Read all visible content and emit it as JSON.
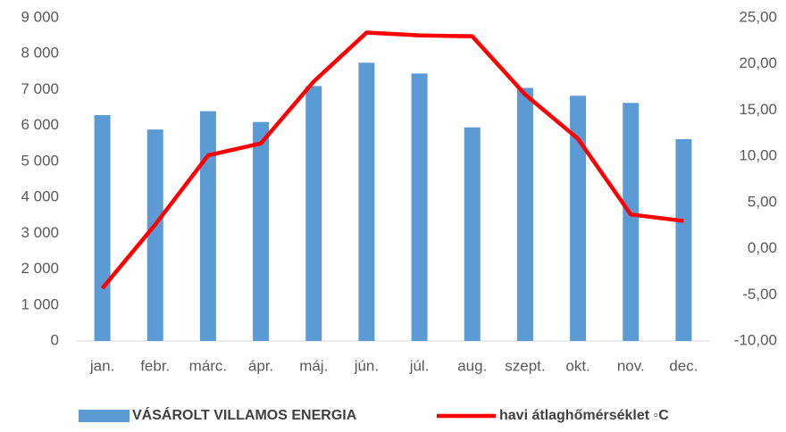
{
  "chart_data": {
    "type": "bar",
    "categories": [
      "jan.",
      "febr.",
      "márc.",
      "ápr.",
      "máj.",
      "jún.",
      "júl.",
      "aug.",
      "szept.",
      "okt.",
      "nov.",
      "dec."
    ],
    "series": [
      {
        "name": "VÁSÁROLT VILLAMOS ENERGIA",
        "type": "bar",
        "color": "#5b9bd5",
        "values": [
          6290,
          5890,
          6400,
          6100,
          7100,
          7750,
          7450,
          5950,
          7050,
          6830,
          6630,
          5620
        ]
      },
      {
        "name": "havi átlaghőmérséklet ◦C",
        "type": "line",
        "axis": "y2",
        "color": "#ff0000",
        "values": [
          -4.3,
          2.6,
          10.1,
          11.4,
          18.1,
          23.4,
          23.1,
          23.0,
          16.7,
          11.9,
          3.7,
          3.0
        ]
      }
    ],
    "ylim": [
      0,
      9000
    ],
    "yticks": [
      0,
      {
        "value": 1000,
        "label": "1 000"
      },
      {
        "value": 2000,
        "label": "2 000"
      },
      {
        "value": 3000,
        "label": "3 000"
      },
      {
        "value": 4000,
        "label": "4 000"
      },
      {
        "value": 5000,
        "label": "5 000"
      },
      {
        "value": 6000,
        "label": "6 000"
      },
      {
        "value": 7000,
        "label": "7 000"
      },
      {
        "value": 8000,
        "label": "8 000"
      },
      {
        "value": 9000,
        "label": "9 000"
      }
    ],
    "y2lim": [
      -10,
      25
    ],
    "y2ticks": [
      {
        "value": -10,
        "label": "-10,00"
      },
      {
        "value": -5,
        "label": "-5,00"
      },
      {
        "value": 0,
        "label": "0,00"
      },
      {
        "value": 5,
        "label": "5,00"
      },
      {
        "value": 10,
        "label": "10,00"
      },
      {
        "value": 15,
        "label": "15,00"
      },
      {
        "value": 20,
        "label": "20,00"
      },
      {
        "value": 25,
        "label": "25,00"
      }
    ],
    "grid": false,
    "legend": "bottom"
  }
}
